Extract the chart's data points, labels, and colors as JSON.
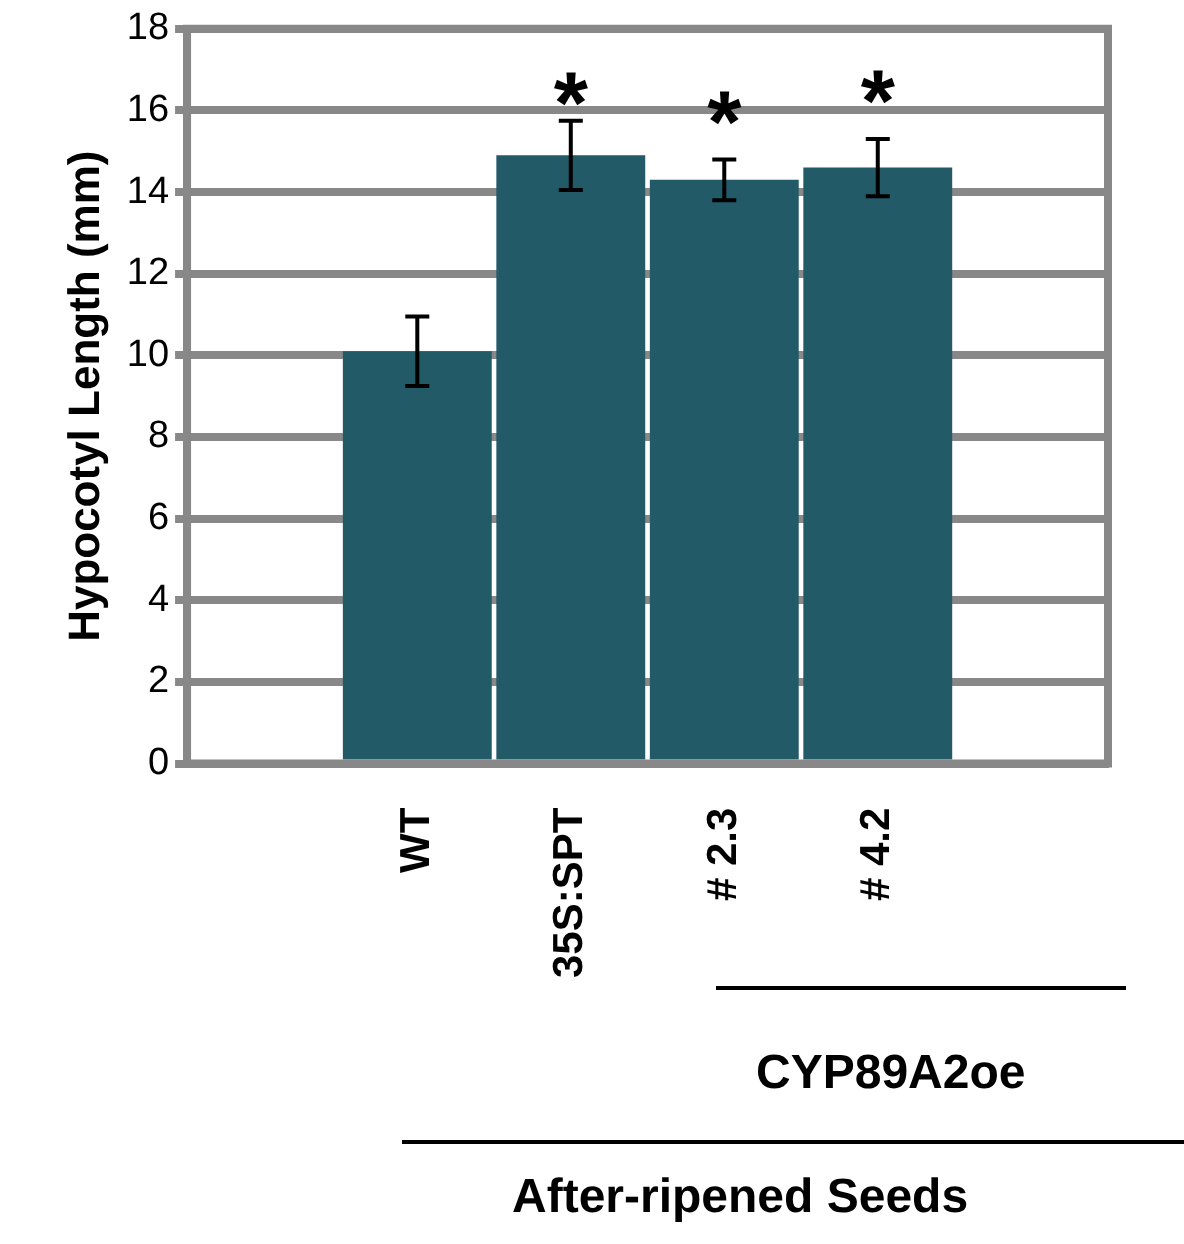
{
  "chart_data": {
    "type": "bar",
    "categories": [
      null,
      "WT",
      "35S:SPT",
      "# 2.3",
      "# 4.2",
      null
    ],
    "values": [
      null,
      10.1,
      14.9,
      14.3,
      14.6,
      null
    ],
    "errors": [
      null,
      0.85,
      0.85,
      0.5,
      0.7,
      null
    ],
    "color": "#225a68",
    "ylabel": "Hypocotyl Length (mm)",
    "ylim": [
      0,
      18
    ],
    "yticks": [
      0,
      2,
      4,
      6,
      8,
      10,
      12,
      14,
      16,
      18
    ],
    "grid": "y",
    "annotations": [
      "*",
      "*",
      "*",
      "CYP89A2oe",
      "After-ripened Seeds"
    ]
  }
}
